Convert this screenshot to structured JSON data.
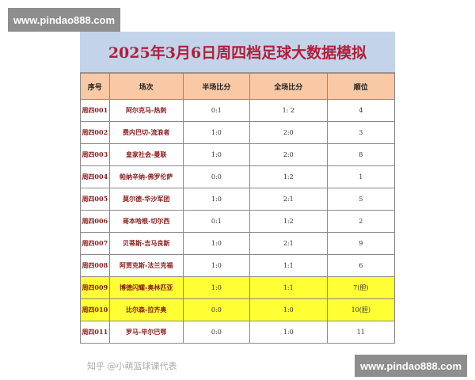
{
  "watermark": "www.pindao888.com",
  "title": "2025年3月6日周四档足球大数据模拟",
  "columns": [
    "序号",
    "场次",
    "半场比分",
    "全场比分",
    "顺位"
  ],
  "rows": [
    {
      "id": "周四001",
      "match": "阿尔克马-热刺",
      "half": "0:1",
      "full": "1: 2",
      "rank": "4",
      "highlight": false
    },
    {
      "id": "周四002",
      "match": "费内巴切-流浪者",
      "half": "1:0",
      "full": "2:0",
      "rank": "3",
      "highlight": false
    },
    {
      "id": "周四003",
      "match": "皇家社会-曼联",
      "half": "1:0",
      "full": "2:0",
      "rank": "8",
      "highlight": false
    },
    {
      "id": "周四004",
      "match": "帕纳辛纳-佛罗伦萨",
      "half": "0:0",
      "full": "1:2",
      "rank": "1",
      "highlight": false
    },
    {
      "id": "周四005",
      "match": "莫尔德-华沙军团",
      "half": "1:0",
      "full": "2:1",
      "rank": "5",
      "highlight": false
    },
    {
      "id": "周四006",
      "match": "哥本哈根-切尔西",
      "half": "0:1",
      "full": "1:2",
      "rank": "2",
      "highlight": false
    },
    {
      "id": "周四007",
      "match": "贝蒂斯-吉马良斯",
      "half": "1:0",
      "full": "2:1",
      "rank": "9",
      "highlight": false
    },
    {
      "id": "周四008",
      "match": "阿贾克斯-法兰克福",
      "half": "1:0",
      "full": "1:1",
      "rank": "6",
      "highlight": false
    },
    {
      "id": "周四009",
      "match": "博德闪耀-奥林匹亚",
      "half": "1:0",
      "full": "1:1",
      "rank": "7(胆)",
      "highlight": true
    },
    {
      "id": "周四010",
      "match": "比尔森-拉齐奥",
      "half": "0:0",
      "full": "1:0",
      "rank": "10(胆)",
      "highlight": true
    },
    {
      "id": "周四011",
      "match": "罗马-毕尔巴鄂",
      "half": "0:0",
      "full": "1:0",
      "rank": "11",
      "highlight": false
    }
  ],
  "source_watermark": "知乎 @小萌篮球课代表",
  "colors": {
    "title_bg": "#c3d3ea",
    "header_bg": "#f9c8a4",
    "highlight": "#ffff33",
    "title_text": "#b0203a"
  }
}
